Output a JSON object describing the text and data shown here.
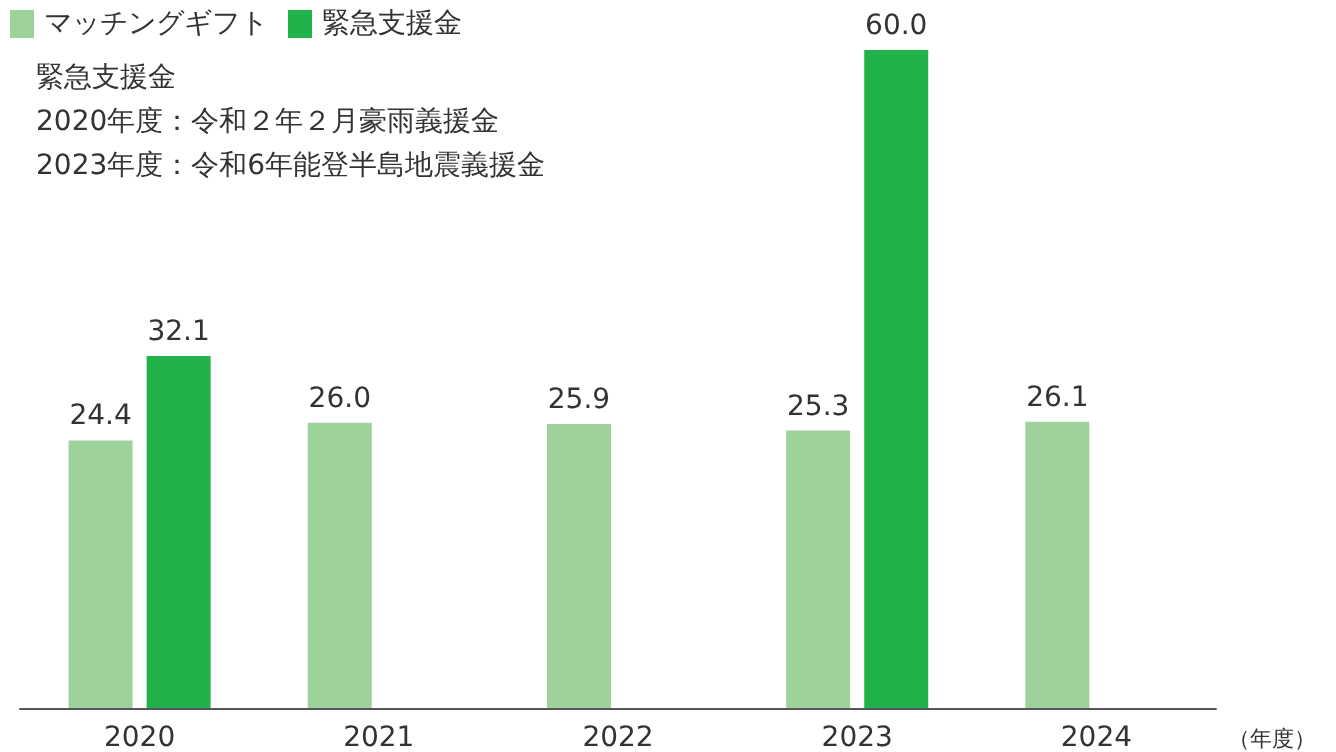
{
  "chart_data": {
    "type": "bar",
    "categories": [
      "2020",
      "2021",
      "2022",
      "2023",
      "2024"
    ],
    "series": [
      {
        "name": "マッチングギフト",
        "color": "#9dd39a",
        "values": [
          24.4,
          26.0,
          25.9,
          25.3,
          26.1
        ],
        "value_labels": [
          "24.4",
          "26.0",
          "25.9",
          "25.3",
          "26.1"
        ]
      },
      {
        "name": "緊急支援金",
        "color": "#22b24c",
        "values": [
          32.1,
          null,
          null,
          60.0,
          null
        ],
        "value_labels": [
          "32.1",
          null,
          null,
          "60.0",
          null
        ]
      }
    ],
    "xlabel": "（年度）",
    "annotations": [
      "緊急支援金",
      "2020年度：令和２年２月豪雨義援金",
      "2023年度：令和6年能登半島地震義援金"
    ],
    "legend": "top left"
  }
}
